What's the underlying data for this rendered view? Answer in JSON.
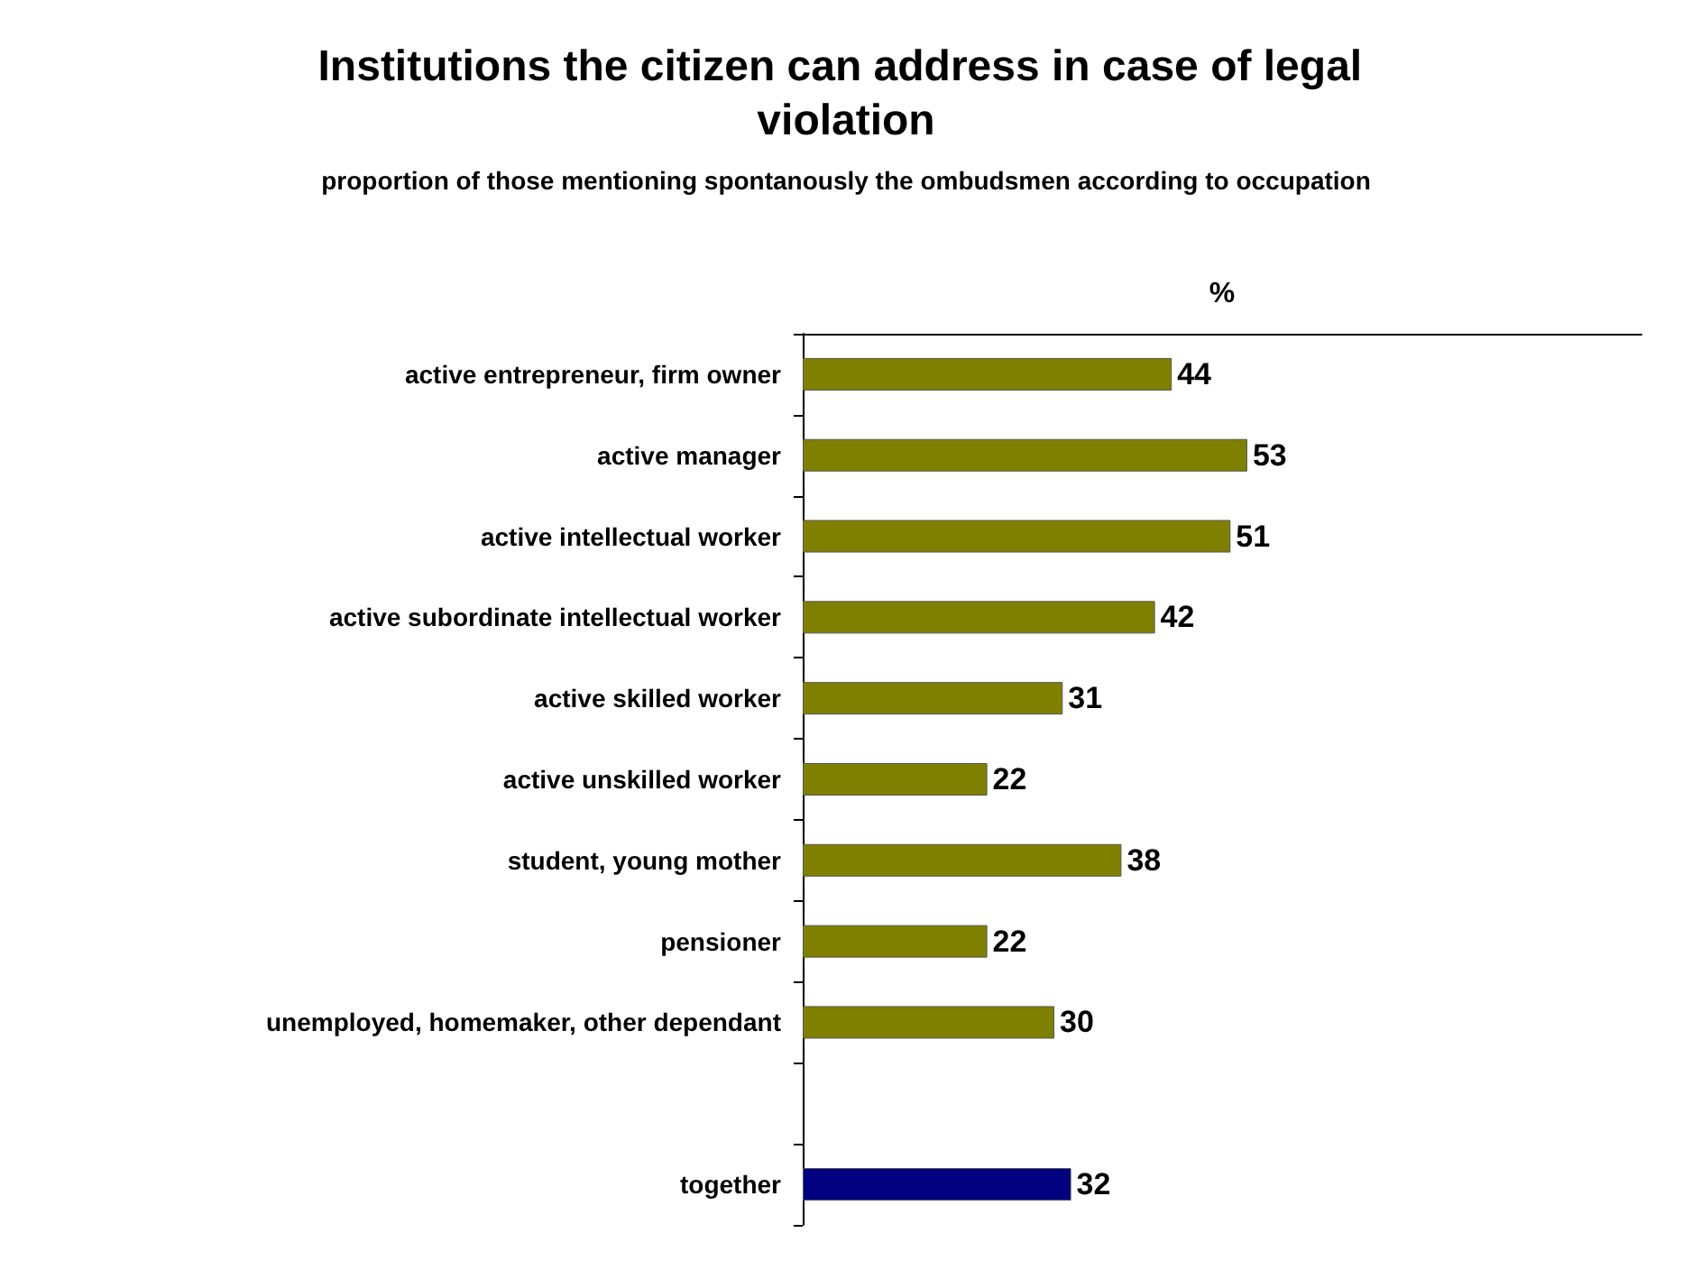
{
  "chart_data": {
    "type": "bar",
    "orientation": "horizontal",
    "title": "Institutions the citizen can address in case of legal violation",
    "subtitle": "proportion of those mentioning spontanously the ombudsmen according to occupation",
    "xlabel": "%",
    "categories": [
      "active entrepreneur, firm owner",
      "active manager",
      "active intellectual worker",
      "active subordinate intellectual worker",
      "active skilled worker",
      "active unskilled worker",
      "student, young mother",
      "pensioner",
      "unemployed, homemaker, other dependant",
      null,
      "together"
    ],
    "values": [
      44,
      53,
      51,
      42,
      31,
      22,
      38,
      22,
      30,
      null,
      32
    ],
    "colors": [
      "#808000",
      "#808000",
      "#808000",
      "#808000",
      "#808000",
      "#808000",
      "#808000",
      "#808000",
      "#808000",
      "#808000",
      "#000080"
    ],
    "xlim": [
      0,
      100
    ],
    "tick_labels": "y",
    "data_labels": true
  }
}
